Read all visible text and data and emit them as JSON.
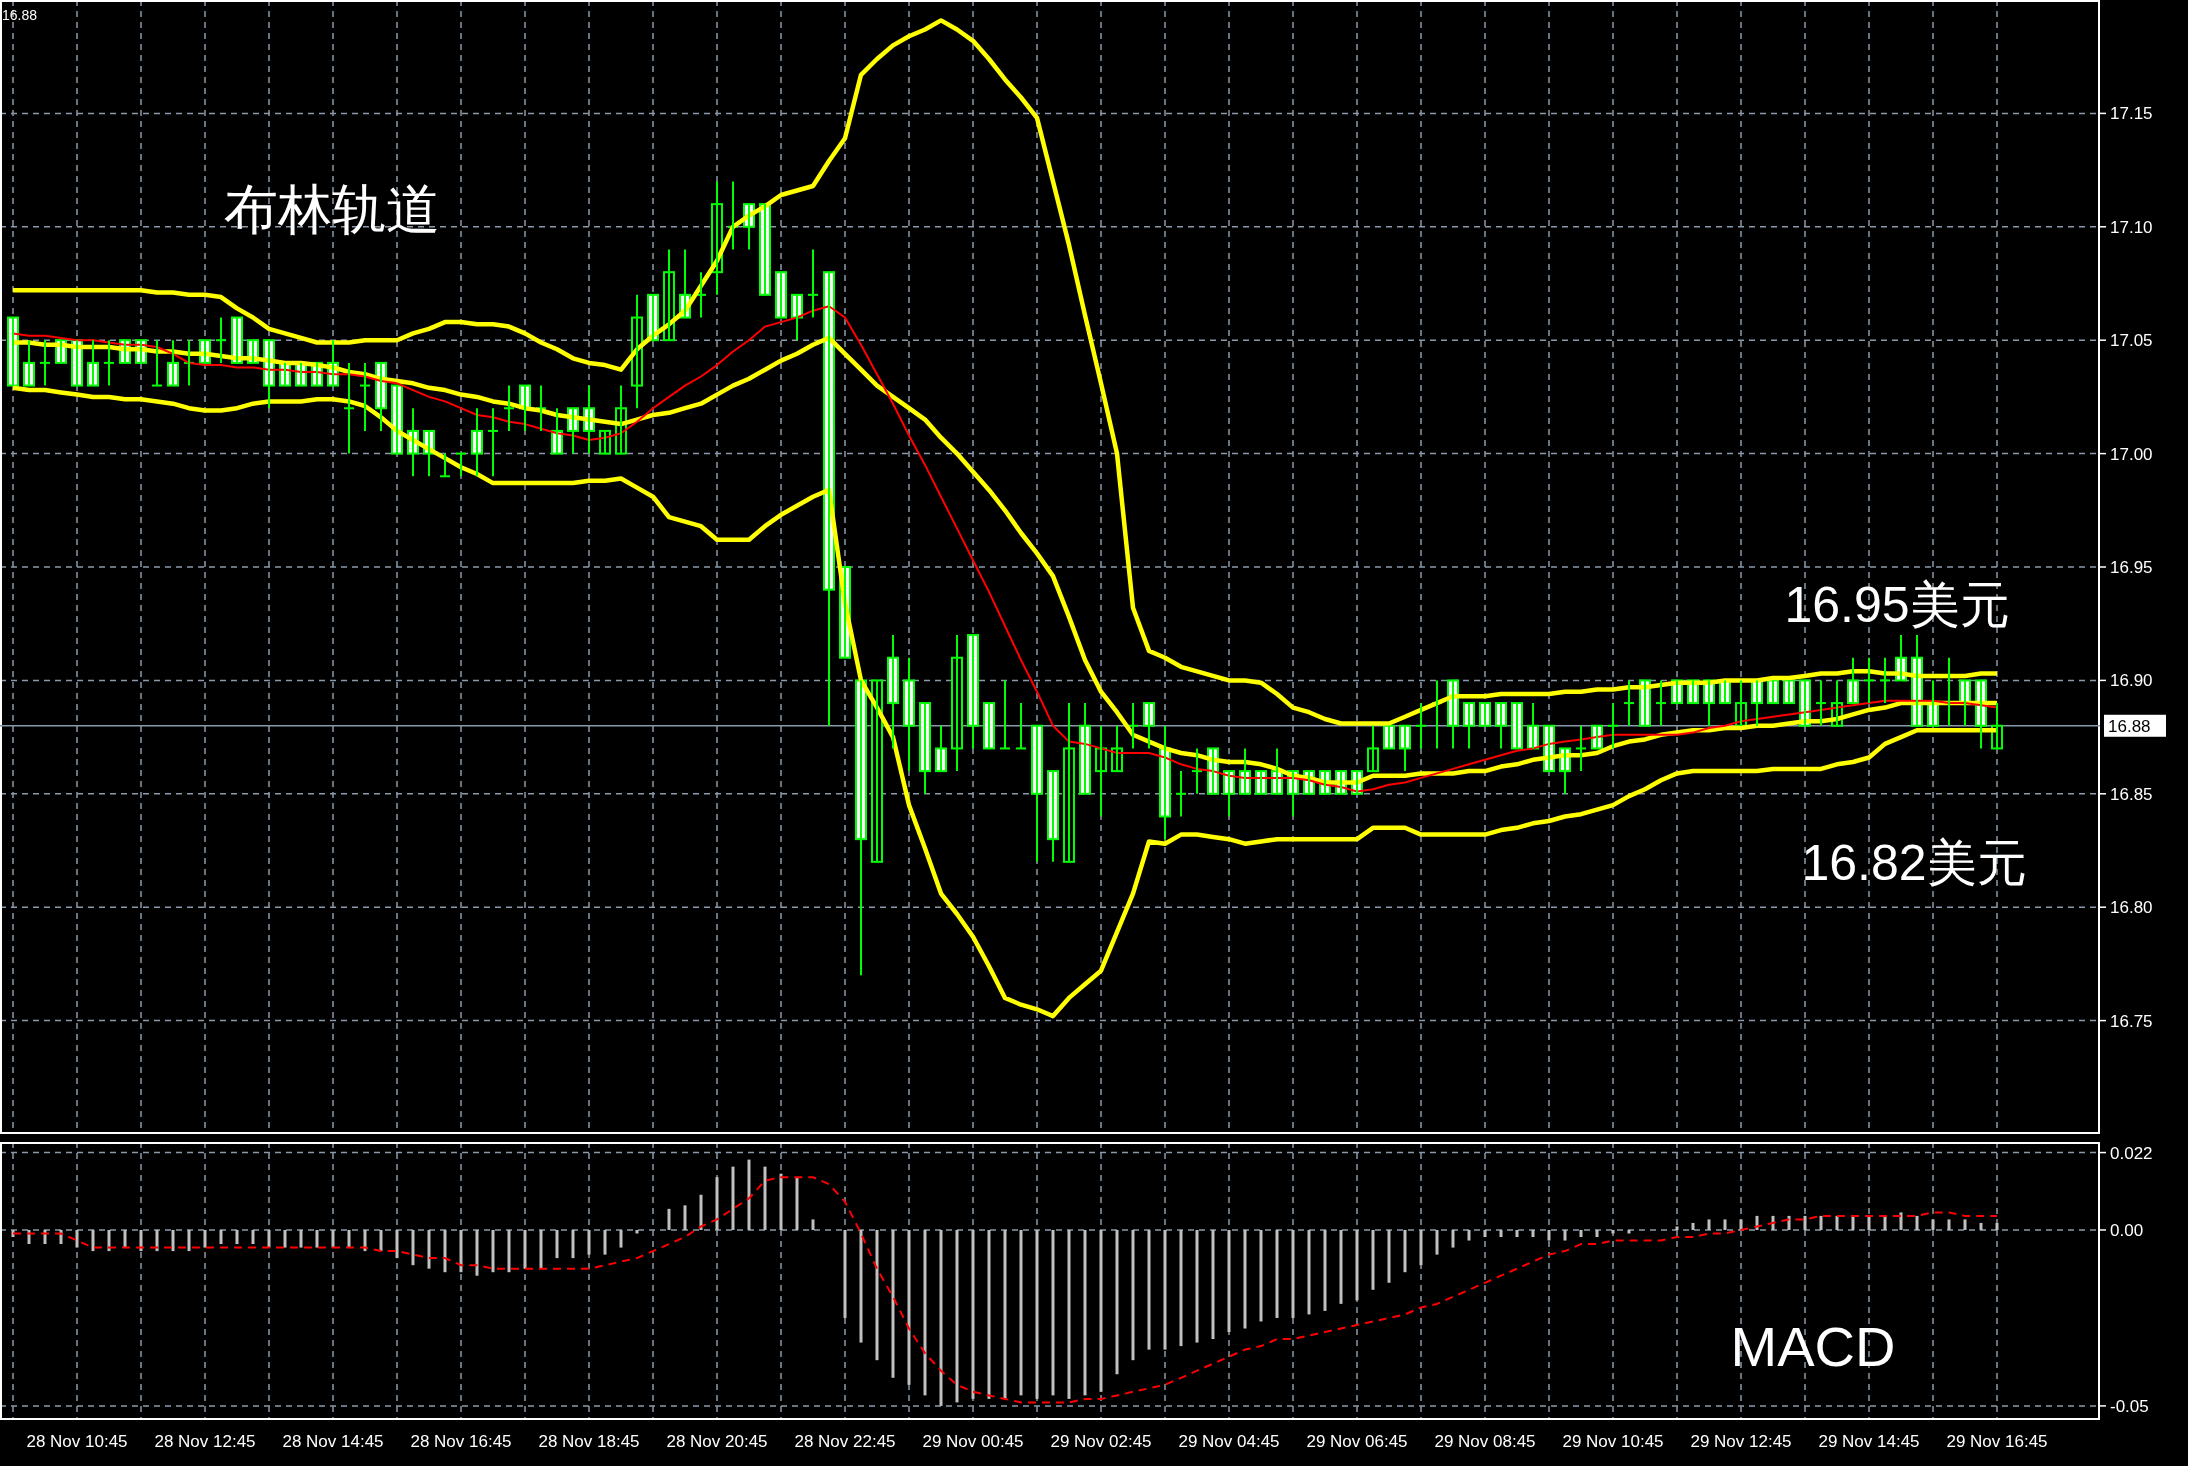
{
  "chart_data": [
    {
      "type": "candlestick",
      "categories": [
        null,
        null,
        null,
        null,
        null,
        null,
        null,
        null,
        null,
        null,
        null,
        null,
        null,
        null,
        null,
        null,
        null,
        null,
        null,
        null,
        null,
        null,
        null,
        null,
        null,
        null,
        null,
        null,
        null,
        null,
        null,
        null,
        null,
        null,
        null,
        null,
        null,
        null,
        null,
        null,
        null,
        null,
        null,
        null,
        null,
        null,
        null,
        null,
        null,
        null,
        null,
        null,
        null,
        null,
        null,
        null,
        null,
        null,
        null,
        null,
        null,
        null,
        null,
        null,
        null,
        null,
        null,
        null,
        null,
        null,
        null,
        null,
        null,
        null,
        null,
        null,
        null,
        null,
        null,
        null,
        null,
        null,
        null,
        null,
        null,
        null,
        null,
        null,
        null,
        null,
        null,
        null,
        null,
        null,
        null,
        null,
        null,
        null,
        null,
        null,
        null,
        null,
        null,
        null,
        null,
        null,
        null,
        null,
        null,
        null,
        null,
        null,
        null,
        null,
        null,
        null,
        null,
        null,
        null,
        null,
        null,
        null,
        null,
        null,
        null
      ],
      "color": "#00ff00",
      "ohlc": [
        [
          17.06,
          17.06,
          17.03,
          17.03
        ],
        [
          17.04,
          17.05,
          17.03,
          17.03
        ],
        [
          17.04,
          17.05,
          17.03,
          17.04
        ],
        [
          17.05,
          17.05,
          17.04,
          17.04
        ],
        [
          17.05,
          17.05,
          17.03,
          17.03
        ],
        [
          17.04,
          17.05,
          17.03,
          17.03
        ],
        [
          17.04,
          17.05,
          17.03,
          17.04
        ],
        [
          17.05,
          17.05,
          17.04,
          17.04
        ],
        [
          17.05,
          17.05,
          17.04,
          17.04
        ],
        [
          17.03,
          17.05,
          17.03,
          17.03
        ],
        [
          17.04,
          17.05,
          17.03,
          17.03
        ],
        [
          17.04,
          17.05,
          17.03,
          17.04
        ],
        [
          17.05,
          17.05,
          17.04,
          17.04
        ],
        [
          17.05,
          17.06,
          17.04,
          17.05
        ],
        [
          17.06,
          17.06,
          17.04,
          17.04
        ],
        [
          17.05,
          17.05,
          17.04,
          17.04
        ],
        [
          17.05,
          17.05,
          17.02,
          17.03
        ],
        [
          17.04,
          17.04,
          17.03,
          17.03
        ],
        [
          17.04,
          17.04,
          17.03,
          17.03
        ],
        [
          17.04,
          17.04,
          17.03,
          17.03
        ],
        [
          17.04,
          17.05,
          17.03,
          17.03
        ],
        [
          17.02,
          17.04,
          17.0,
          17.02
        ],
        [
          17.03,
          17.04,
          17.01,
          17.03
        ],
        [
          17.04,
          17.04,
          17.01,
          17.02
        ],
        [
          17.03,
          17.03,
          17.0,
          17.0
        ],
        [
          17.01,
          17.02,
          16.99,
          17.0
        ],
        [
          17.01,
          17.01,
          16.99,
          17.0
        ],
        [
          16.99,
          17.0,
          16.99,
          16.99
        ],
        [
          17.0,
          17.0,
          16.99,
          17.0
        ],
        [
          17.01,
          17.02,
          16.99,
          17.0
        ],
        [
          17.01,
          17.02,
          16.99,
          17.01
        ],
        [
          17.02,
          17.03,
          17.01,
          17.02
        ],
        [
          17.03,
          17.03,
          17.01,
          17.02
        ],
        [
          17.02,
          17.03,
          17.01,
          17.02
        ],
        [
          17.01,
          17.02,
          17.0,
          17.0
        ],
        [
          17.02,
          17.02,
          17.0,
          17.01
        ],
        [
          17.02,
          17.03,
          17.0,
          17.01
        ],
        [
          17.0,
          17.01,
          17.0,
          17.01
        ],
        [
          17.0,
          17.03,
          17.0,
          17.02
        ],
        [
          17.03,
          17.07,
          17.02,
          17.06
        ],
        [
          17.07,
          17.07,
          17.05,
          17.05
        ],
        [
          17.05,
          17.09,
          17.05,
          17.08
        ],
        [
          17.07,
          17.09,
          17.06,
          17.06
        ],
        [
          17.07,
          17.08,
          17.06,
          17.07
        ],
        [
          17.08,
          17.12,
          17.07,
          17.11
        ],
        [
          17.1,
          17.12,
          17.09,
          17.1
        ],
        [
          17.11,
          17.11,
          17.09,
          17.1
        ],
        [
          17.11,
          17.11,
          17.07,
          17.07
        ],
        [
          17.08,
          17.08,
          17.06,
          17.06
        ],
        [
          17.07,
          17.07,
          17.05,
          17.06
        ],
        [
          17.07,
          17.09,
          17.06,
          17.07
        ],
        [
          17.08,
          17.08,
          16.88,
          16.94
        ],
        [
          16.95,
          16.95,
          16.91,
          16.91
        ],
        [
          16.9,
          16.9,
          16.77,
          16.83
        ],
        [
          16.82,
          16.9,
          16.82,
          16.9
        ],
        [
          16.91,
          16.92,
          16.87,
          16.89
        ],
        [
          16.9,
          16.91,
          16.86,
          16.88
        ],
        [
          16.89,
          16.89,
          16.85,
          16.86
        ],
        [
          16.87,
          16.88,
          16.86,
          16.86
        ],
        [
          16.87,
          16.92,
          16.86,
          16.91
        ],
        [
          16.92,
          16.92,
          16.87,
          16.88
        ],
        [
          16.89,
          16.89,
          16.87,
          16.87
        ],
        [
          16.87,
          16.9,
          16.87,
          16.87
        ],
        [
          16.87,
          16.89,
          16.87,
          16.87
        ],
        [
          16.88,
          16.88,
          16.82,
          16.85
        ],
        [
          16.86,
          16.86,
          16.82,
          16.83
        ],
        [
          16.82,
          16.89,
          16.82,
          16.87
        ],
        [
          16.88,
          16.89,
          16.85,
          16.85
        ],
        [
          16.86,
          16.88,
          16.84,
          16.87
        ],
        [
          16.86,
          16.88,
          16.86,
          16.87
        ],
        [
          16.88,
          16.89,
          16.87,
          16.88
        ],
        [
          16.89,
          16.89,
          16.87,
          16.88
        ],
        [
          16.87,
          16.88,
          16.83,
          16.84
        ],
        [
          16.85,
          16.86,
          16.84,
          16.85
        ],
        [
          16.86,
          16.87,
          16.85,
          16.86
        ],
        [
          16.87,
          16.87,
          16.85,
          16.85
        ],
        [
          16.86,
          16.86,
          16.84,
          16.85
        ],
        [
          16.86,
          16.87,
          16.85,
          16.85
        ],
        [
          16.86,
          16.86,
          16.85,
          16.85
        ],
        [
          16.86,
          16.87,
          16.85,
          16.85
        ],
        [
          16.86,
          16.86,
          16.84,
          16.85
        ],
        [
          16.86,
          16.86,
          16.85,
          16.85
        ],
        [
          16.86,
          16.86,
          16.85,
          16.85
        ],
        [
          16.86,
          16.86,
          16.85,
          16.85
        ],
        [
          16.86,
          16.86,
          16.85,
          16.85
        ],
        [
          16.86,
          16.88,
          16.86,
          16.87
        ],
        [
          16.88,
          16.88,
          16.87,
          16.87
        ],
        [
          16.88,
          16.88,
          16.86,
          16.87
        ],
        [
          16.88,
          16.89,
          16.87,
          16.88
        ],
        [
          16.89,
          16.9,
          16.87,
          16.89
        ],
        [
          16.9,
          16.9,
          16.87,
          16.88
        ],
        [
          16.89,
          16.89,
          16.87,
          16.88
        ],
        [
          16.89,
          16.89,
          16.88,
          16.88
        ],
        [
          16.89,
          16.89,
          16.87,
          16.88
        ],
        [
          16.89,
          16.89,
          16.87,
          16.87
        ],
        [
          16.88,
          16.89,
          16.87,
          16.87
        ],
        [
          16.88,
          16.88,
          16.86,
          16.86
        ],
        [
          16.87,
          16.87,
          16.85,
          16.86
        ],
        [
          16.87,
          16.88,
          16.86,
          16.87
        ],
        [
          16.88,
          16.88,
          16.87,
          16.87
        ],
        [
          16.88,
          16.89,
          16.87,
          16.88
        ],
        [
          16.89,
          16.9,
          16.88,
          16.89
        ],
        [
          16.9,
          16.9,
          16.88,
          16.88
        ],
        [
          16.89,
          16.9,
          16.88,
          16.89
        ],
        [
          16.9,
          16.9,
          16.89,
          16.89
        ],
        [
          16.9,
          16.9,
          16.89,
          16.89
        ],
        [
          16.9,
          16.9,
          16.88,
          16.89
        ],
        [
          16.9,
          16.9,
          16.89,
          16.89
        ],
        [
          16.88,
          16.9,
          16.88,
          16.89
        ],
        [
          16.9,
          16.9,
          16.88,
          16.89
        ],
        [
          16.9,
          16.9,
          16.89,
          16.89
        ],
        [
          16.9,
          16.9,
          16.89,
          16.89
        ],
        [
          16.9,
          16.9,
          16.88,
          16.88
        ],
        [
          16.89,
          16.9,
          16.88,
          16.89
        ],
        [
          16.88,
          16.9,
          16.88,
          16.89
        ],
        [
          16.9,
          16.91,
          16.89,
          16.89
        ],
        [
          16.9,
          16.91,
          16.89,
          16.9
        ],
        [
          16.9,
          16.91,
          16.89,
          16.9
        ],
        [
          16.91,
          16.92,
          16.9,
          16.9
        ],
        [
          16.91,
          16.92,
          16.88,
          16.88
        ],
        [
          16.89,
          16.9,
          16.88,
          16.88
        ],
        [
          16.89,
          16.91,
          16.88,
          16.89
        ],
        [
          16.9,
          16.9,
          16.88,
          16.89
        ],
        [
          16.9,
          16.9,
          16.87,
          16.88
        ],
        [
          16.87,
          16.89,
          16.87,
          16.88
        ]
      ],
      "series": [
        {
          "type": "line",
          "color": "#ffff00",
          "values": [
            17.072,
            17.072,
            17.072,
            17.072,
            17.072,
            17.072,
            17.072,
            17.072,
            17.072,
            17.071,
            17.071,
            17.07,
            17.07,
            17.069,
            17.064,
            17.06,
            17.055,
            17.053,
            17.051,
            17.049,
            17.049,
            17.049,
            17.05,
            17.05,
            17.05,
            17.053,
            17.055,
            17.058,
            17.058,
            17.057,
            17.057,
            17.056,
            17.053,
            17.049,
            17.046,
            17.042,
            17.04,
            17.039,
            17.037,
            17.046,
            17.052,
            17.057,
            17.063,
            17.074,
            17.085,
            17.1,
            17.105,
            17.109,
            17.114,
            17.116,
            17.118,
            17.129,
            17.139,
            17.167,
            17.174,
            17.18,
            17.184,
            17.187,
            17.191,
            17.187,
            17.182,
            17.174,
            17.165,
            17.157,
            17.148,
            17.12,
            17.092,
            17.061,
            17.031,
            17.0,
            16.932,
            16.913,
            16.91,
            16.906,
            16.904,
            16.902,
            16.9,
            16.9,
            16.899,
            16.894,
            16.888,
            16.886,
            16.883,
            16.881,
            16.881,
            16.881,
            16.881,
            16.884,
            16.887,
            16.89,
            16.893,
            16.893,
            16.893,
            16.894,
            16.894,
            16.894,
            16.894,
            16.895,
            16.895,
            16.896,
            16.896,
            16.897,
            16.897,
            16.898,
            16.899,
            16.899,
            16.899,
            16.9,
            16.9,
            16.9,
            16.901,
            16.901,
            16.902,
            16.903,
            16.903,
            16.904,
            16.904,
            16.903,
            16.903,
            16.902,
            16.902,
            16.902,
            16.902,
            16.903,
            16.903
          ]
        },
        {
          "type": "line",
          "color": "#ffff00",
          "values": [
            17.049,
            17.049,
            17.048,
            17.048,
            17.047,
            17.047,
            17.047,
            17.046,
            17.046,
            17.045,
            17.045,
            17.044,
            17.044,
            17.043,
            17.042,
            17.042,
            17.041,
            17.04,
            17.04,
            17.039,
            17.038,
            17.036,
            17.035,
            17.033,
            17.032,
            17.031,
            17.029,
            17.028,
            17.026,
            17.025,
            17.023,
            17.022,
            17.02,
            17.019,
            17.017,
            17.016,
            17.015,
            17.014,
            17.013,
            17.015,
            17.017,
            17.018,
            17.02,
            17.022,
            17.026,
            17.03,
            17.033,
            17.037,
            17.041,
            17.044,
            17.048,
            17.051,
            17.044,
            17.037,
            17.03,
            17.025,
            17.02,
            17.015,
            17.007,
            17.0,
            16.992,
            16.984,
            16.975,
            16.965,
            16.956,
            16.946,
            16.928,
            16.909,
            16.895,
            16.886,
            16.876,
            16.873,
            16.87,
            16.868,
            16.867,
            16.865,
            16.864,
            16.864,
            16.863,
            16.861,
            16.858,
            16.857,
            16.855,
            16.855,
            16.855,
            16.858,
            16.858,
            16.858,
            16.859,
            16.859,
            16.859,
            16.86,
            16.86,
            16.862,
            16.863,
            16.865,
            16.866,
            16.867,
            16.867,
            16.868,
            16.871,
            16.873,
            16.874,
            16.876,
            16.877,
            16.878,
            16.878,
            16.879,
            16.879,
            16.88,
            16.88,
            16.881,
            16.882,
            16.882,
            16.883,
            16.885,
            16.887,
            16.888,
            16.89,
            16.89,
            16.89,
            16.89,
            16.89,
            16.89,
            16.89
          ]
        },
        {
          "type": "line",
          "color": "#ffff00",
          "values": [
            17.029,
            17.028,
            17.028,
            17.027,
            17.026,
            17.025,
            17.025,
            17.024,
            17.024,
            17.023,
            17.022,
            17.02,
            17.019,
            17.019,
            17.02,
            17.022,
            17.023,
            17.023,
            17.023,
            17.024,
            17.024,
            17.023,
            17.021,
            17.016,
            17.01,
            17.006,
            17.002,
            16.998,
            16.994,
            16.991,
            16.987,
            16.987,
            16.987,
            16.987,
            16.987,
            16.987,
            16.988,
            16.988,
            16.989,
            16.985,
            16.981,
            16.972,
            16.97,
            16.968,
            16.962,
            16.962,
            16.962,
            16.968,
            16.973,
            16.977,
            16.981,
            16.984,
            16.934,
            16.9,
            16.888,
            16.875,
            16.845,
            16.826,
            16.806,
            16.797,
            16.787,
            16.774,
            16.76,
            16.757,
            16.755,
            16.752,
            16.76,
            16.766,
            16.772,
            16.789,
            16.806,
            16.829,
            16.828,
            16.832,
            16.832,
            16.831,
            16.83,
            16.828,
            16.829,
            16.83,
            16.83,
            16.83,
            16.83,
            16.83,
            16.83,
            16.835,
            16.835,
            16.835,
            16.832,
            16.832,
            16.832,
            16.832,
            16.832,
            16.834,
            16.835,
            16.837,
            16.838,
            16.84,
            16.841,
            16.843,
            16.845,
            16.849,
            16.852,
            16.856,
            16.859,
            16.86,
            16.86,
            16.86,
            16.86,
            16.86,
            16.861,
            16.861,
            16.861,
            16.861,
            16.863,
            16.864,
            16.866,
            16.872,
            16.875,
            16.878,
            16.878,
            16.878,
            16.878,
            16.878,
            16.878
          ]
        },
        {
          "type": "line",
          "color": "#ff0000",
          "values": [
            17.053,
            17.052,
            17.052,
            17.051,
            17.05,
            17.05,
            17.049,
            17.048,
            17.048,
            17.047,
            17.044,
            17.04,
            17.039,
            17.039,
            17.038,
            17.038,
            17.037,
            17.037,
            17.036,
            17.036,
            17.035,
            17.035,
            17.034,
            17.032,
            17.031,
            17.028,
            17.025,
            17.023,
            17.02,
            17.017,
            17.016,
            17.014,
            17.013,
            17.011,
            17.009,
            17.008,
            17.006,
            17.007,
            17.009,
            17.014,
            17.02,
            17.025,
            17.03,
            17.034,
            17.039,
            17.045,
            17.05,
            17.056,
            17.058,
            17.06,
            17.063,
            17.065,
            17.06,
            17.048,
            17.035,
            17.022,
            17.008,
            16.995,
            16.981,
            16.967,
            16.953,
            16.939,
            16.924,
            16.909,
            16.895,
            16.88,
            16.873,
            16.872,
            16.87,
            16.868,
            16.868,
            16.868,
            16.866,
            16.863,
            16.861,
            16.86,
            16.858,
            16.857,
            16.857,
            16.857,
            16.857,
            16.856,
            16.854,
            16.853,
            16.851,
            16.852,
            16.854,
            16.855,
            16.857,
            16.859,
            16.861,
            16.863,
            16.865,
            16.867,
            16.869,
            16.87,
            16.872,
            16.873,
            16.874,
            16.875,
            16.876,
            16.876,
            16.876,
            16.876,
            16.876,
            16.877,
            16.879,
            16.88,
            16.882,
            16.883,
            16.884,
            16.885,
            16.886,
            16.887,
            16.888,
            16.889,
            16.89,
            16.891,
            16.891,
            16.891,
            16.891,
            16.89,
            16.89,
            16.889,
            16.888
          ]
        }
      ],
      "ylim": [
        16.7,
        17.2
      ],
      "yticks": [
        {
          "value": 16.75,
          "label": "16.75"
        },
        {
          "value": 16.8,
          "label": "16.80"
        },
        {
          "value": 16.85,
          "label": "16.85"
        },
        {
          "value": 16.9,
          "label": "16.90"
        },
        {
          "value": 16.95,
          "label": "16.95"
        },
        {
          "value": 17.0,
          "label": "17.00"
        },
        {
          "value": 17.05,
          "label": "17.05"
        },
        {
          "value": 17.1,
          "label": "17.10"
        },
        {
          "value": 17.15,
          "label": "17.15"
        }
      ],
      "ref_lines": [
        {
          "axis": "y",
          "value": 16.88,
          "label": "16.88",
          "color": "#8899aa"
        }
      ],
      "annotations": [
        "布林轨道",
        "16.95美元",
        "16.82美元",
        "16.88"
      ],
      "grid": true
    },
    {
      "type": "bar",
      "categories": [
        null,
        null,
        null,
        null,
        "28 Nov 10:45",
        null,
        null,
        null,
        null,
        null,
        null,
        null,
        "28 Nov 12:45",
        null,
        null,
        null,
        null,
        null,
        null,
        null,
        "28 Nov 14:45",
        null,
        null,
        null,
        null,
        null,
        null,
        null,
        "28 Nov 16:45",
        null,
        null,
        null,
        null,
        null,
        null,
        null,
        "28 Nov 18:45",
        null,
        null,
        null,
        null,
        null,
        null,
        null,
        "28 Nov 20:45",
        null,
        null,
        null,
        null,
        null,
        null,
        null,
        "28 Nov 22:45",
        null,
        null,
        null,
        null,
        null,
        null,
        null,
        "29 Nov 00:45",
        null,
        null,
        null,
        null,
        null,
        null,
        null,
        "29 Nov 02:45",
        null,
        null,
        null,
        null,
        null,
        null,
        null,
        "29 Nov 04:45",
        null,
        null,
        null,
        null,
        null,
        null,
        null,
        "29 Nov 06:45",
        null,
        null,
        null,
        null,
        null,
        null,
        null,
        "29 Nov 08:45",
        null,
        null,
        null,
        null,
        null,
        null,
        null,
        "29 Nov 10:45",
        null,
        null,
        null,
        null,
        null,
        null,
        null,
        "29 Nov 12:45",
        null,
        null,
        null,
        null,
        null,
        null,
        null,
        "29 Nov 14:45",
        null,
        null,
        null,
        null,
        null,
        null,
        null,
        "29 Nov 16:45"
      ],
      "series": [
        {
          "type": "bar",
          "color": "#c0c0c0",
          "values": [
            -0.002,
            -0.004,
            -0.004,
            -0.004,
            -0.005,
            -0.006,
            -0.006,
            -0.005,
            -0.006,
            -0.006,
            -0.006,
            -0.006,
            -0.005,
            -0.004,
            -0.004,
            -0.004,
            -0.005,
            -0.005,
            -0.005,
            -0.005,
            -0.005,
            -0.005,
            -0.006,
            -0.006,
            -0.008,
            -0.01,
            -0.011,
            -0.012,
            -0.012,
            -0.013,
            -0.012,
            -0.012,
            -0.011,
            -0.011,
            -0.008,
            -0.008,
            -0.007,
            -0.007,
            -0.005,
            -0.001,
            0.0,
            0.006,
            0.007,
            0.01,
            0.015,
            0.018,
            0.02,
            0.018,
            0.016,
            0.015,
            0.003,
            0.0,
            -0.025,
            -0.032,
            -0.037,
            -0.042,
            -0.044,
            -0.047,
            -0.05,
            -0.049,
            -0.048,
            -0.048,
            -0.048,
            -0.047,
            -0.048,
            -0.047,
            -0.048,
            -0.047,
            -0.046,
            -0.041,
            -0.037,
            -0.034,
            -0.034,
            -0.033,
            -0.032,
            -0.031,
            -0.029,
            -0.028,
            -0.026,
            -0.025,
            -0.025,
            -0.024,
            -0.023,
            -0.021,
            -0.02,
            -0.017,
            -0.015,
            -0.012,
            -0.01,
            -0.007,
            -0.005,
            -0.003,
            -0.002,
            -0.002,
            -0.002,
            -0.002,
            -0.003,
            -0.003,
            -0.002,
            -0.002,
            -0.001,
            -0.001,
            0.0,
            0.0,
            0.001,
            0.002,
            0.003,
            0.003,
            0.003,
            0.004,
            0.004,
            0.004,
            0.004,
            0.004,
            0.004,
            0.004,
            0.004,
            0.004,
            0.005,
            0.004,
            0.003,
            0.003,
            0.003,
            0.002,
            0.002
          ]
        },
        {
          "type": "line",
          "color": "#ff0000",
          "line_style": "dashed",
          "values": [
            -0.001,
            -0.001,
            -0.001,
            -0.001,
            -0.003,
            -0.005,
            -0.005,
            -0.005,
            -0.005,
            -0.005,
            -0.005,
            -0.005,
            -0.005,
            -0.005,
            -0.005,
            -0.005,
            -0.005,
            -0.005,
            -0.005,
            -0.005,
            -0.005,
            -0.005,
            -0.005,
            -0.006,
            -0.006,
            -0.007,
            -0.008,
            -0.008,
            -0.01,
            -0.01,
            -0.011,
            -0.011,
            -0.011,
            -0.011,
            -0.011,
            -0.011,
            -0.011,
            -0.01,
            -0.009,
            -0.008,
            -0.006,
            -0.004,
            -0.002,
            0.001,
            0.003,
            0.006,
            0.009,
            0.014,
            0.015,
            0.015,
            0.015,
            0.013,
            0.008,
            -0.001,
            -0.011,
            -0.019,
            -0.028,
            -0.035,
            -0.04,
            -0.044,
            -0.046,
            -0.047,
            -0.048,
            -0.049,
            -0.049,
            -0.049,
            -0.049,
            -0.048,
            -0.048,
            -0.047,
            -0.046,
            -0.045,
            -0.044,
            -0.042,
            -0.04,
            -0.038,
            -0.036,
            -0.034,
            -0.033,
            -0.031,
            -0.031,
            -0.03,
            -0.029,
            -0.028,
            -0.027,
            -0.026,
            -0.025,
            -0.024,
            -0.022,
            -0.021,
            -0.019,
            -0.017,
            -0.015,
            -0.013,
            -0.011,
            -0.009,
            -0.007,
            -0.006,
            -0.004,
            -0.004,
            -0.003,
            -0.003,
            -0.003,
            -0.003,
            -0.002,
            -0.002,
            -0.001,
            -0.001,
            0.0,
            0.001,
            0.002,
            0.003,
            0.003,
            0.004,
            0.004,
            0.004,
            0.004,
            0.004,
            0.004,
            0.004,
            0.005,
            0.005,
            0.004,
            0.004,
            0.004
          ]
        }
      ],
      "ylim": [
        -0.054,
        0.025
      ],
      "yticks": [
        0.022,
        {
          "value": 0,
          "label": "0.00"
        },
        -0.05
      ],
      "annotations": [
        "MACD"
      ],
      "grid": true
    }
  ]
}
